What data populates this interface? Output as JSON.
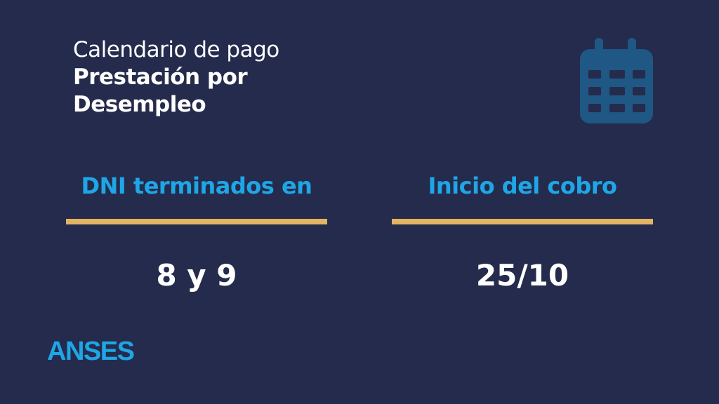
{
  "title": {
    "line1": "Calendario de pago",
    "line2": "Prestación por",
    "line3": "Desempleo"
  },
  "columns": [
    {
      "header": "DNI terminados en",
      "value": "8 y 9"
    },
    {
      "header": "Inicio del cobro",
      "value": "25/10"
    }
  ],
  "brand": "ANSES",
  "icon": "calendar-icon",
  "colors": {
    "background": "#252b4c",
    "accent_blue": "#1ea6e6",
    "divider_gold": "#e3b463",
    "icon": "#1f5785"
  }
}
